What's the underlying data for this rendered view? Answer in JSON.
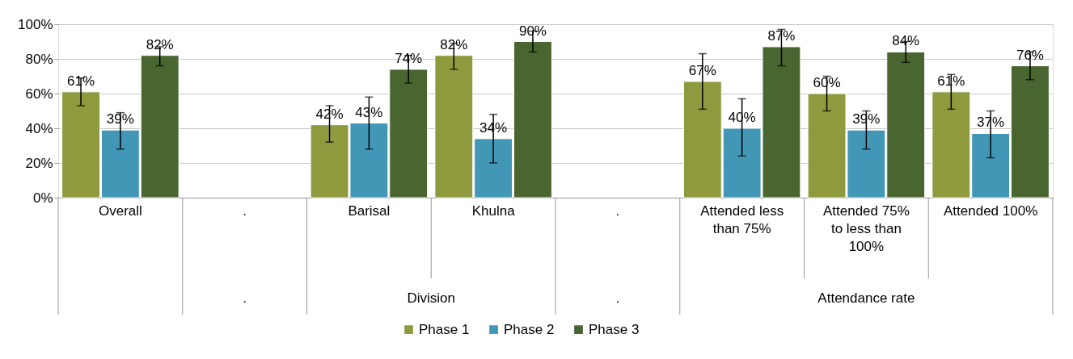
{
  "chart_data": {
    "type": "bar",
    "categories": [
      "Overall",
      ".",
      "Barisal",
      "Khulna",
      ".",
      "Attended less than 75%",
      "Attended 75% to less than 100%",
      "Attended 100%"
    ],
    "series": [
      {
        "name": "Phase 1",
        "color": "#8f993e",
        "values": [
          61,
          null,
          42,
          82,
          null,
          67,
          60,
          61
        ],
        "value_labels": [
          "61%",
          null,
          "42%",
          "82%",
          null,
          "67%",
          "60%",
          "61%"
        ],
        "errors": [
          [
            53,
            69
          ],
          null,
          [
            32,
            53
          ],
          [
            74,
            89
          ],
          null,
          [
            51,
            83
          ],
          [
            50,
            70
          ],
          [
            51,
            71
          ]
        ]
      },
      {
        "name": "Phase 2",
        "color": "#4397b6",
        "values": [
          39,
          null,
          43,
          34,
          null,
          40,
          39,
          37
        ],
        "value_labels": [
          "39%",
          null,
          "43%",
          "34%",
          null,
          "40%",
          "39%",
          "37%"
        ],
        "errors": [
          [
            28,
            49
          ],
          null,
          [
            28,
            58
          ],
          [
            20,
            48
          ],
          null,
          [
            24,
            57
          ],
          [
            28,
            50
          ],
          [
            23,
            50
          ]
        ]
      },
      {
        "name": "Phase 3",
        "color": "#4a6630",
        "values": [
          82,
          null,
          74,
          90,
          null,
          87,
          84,
          76
        ],
        "value_labels": [
          "82%",
          null,
          "74%",
          "90%",
          null,
          "87%",
          "84%",
          "76%"
        ],
        "errors": [
          [
            76,
            87
          ],
          null,
          [
            66,
            82
          ],
          [
            84,
            96
          ],
          null,
          [
            76,
            97
          ],
          [
            78,
            90
          ],
          [
            68,
            84
          ]
        ]
      }
    ],
    "annotations": [
      ".",
      "Division",
      ".",
      "Attendance rate"
    ],
    "ylim": [
      0,
      100
    ],
    "yticks": [
      {
        "value": 0,
        "label": "0%"
      },
      {
        "value": 20,
        "label": "20%"
      },
      {
        "value": 40,
        "label": "40%"
      },
      {
        "value": 60,
        "label": "60%"
      },
      {
        "value": 80,
        "label": "80%"
      },
      {
        "value": 100,
        "label": "100%"
      }
    ],
    "grid": "y",
    "legend": "bottom"
  }
}
